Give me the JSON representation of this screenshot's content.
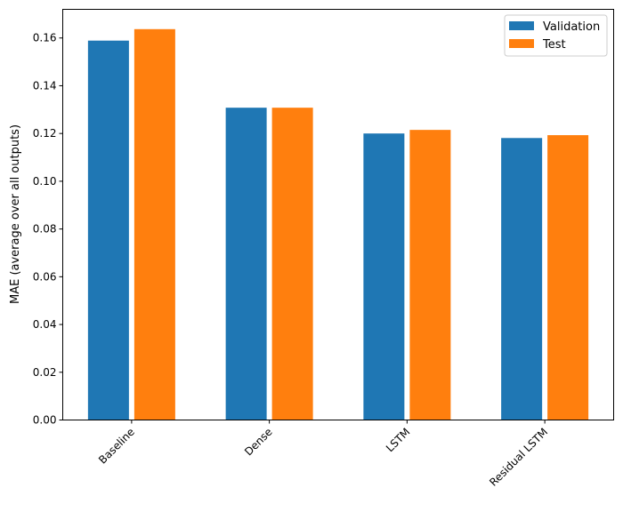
{
  "chart_data": {
    "type": "bar",
    "title": "",
    "xlabel": "",
    "ylabel": "MAE (average over all outputs)",
    "categories": [
      "Baseline",
      "Dense",
      "LSTM",
      "Residual LSTM"
    ],
    "series": [
      {
        "name": "Validation",
        "color": "#1f77b4",
        "values": [
          0.1589,
          0.1308,
          0.12,
          0.1181
        ]
      },
      {
        "name": "Test",
        "color": "#ff7f0e",
        "values": [
          0.1637,
          0.1308,
          0.1215,
          0.1193
        ]
      }
    ],
    "ylim": [
      0,
      0.172
    ],
    "yticks": [
      "0.00",
      "0.02",
      "0.04",
      "0.06",
      "0.08",
      "0.10",
      "0.12",
      "0.14",
      "0.16"
    ],
    "grid": false,
    "legend_position": "top-right",
    "xtick_rotation": 45
  }
}
